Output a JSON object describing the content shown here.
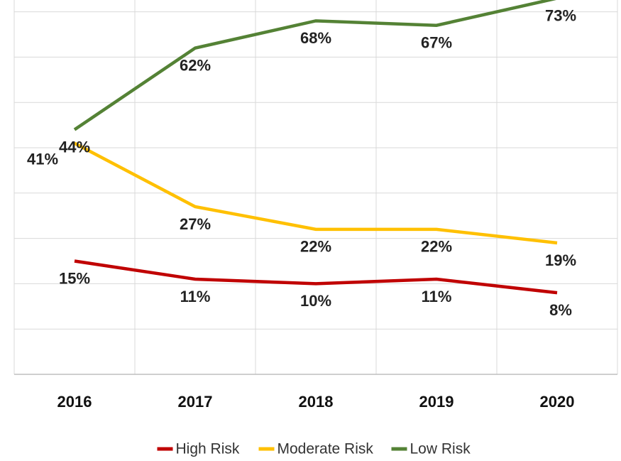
{
  "chart_data": {
    "type": "line",
    "categories": [
      "2016",
      "2017",
      "2018",
      "2019",
      "2020"
    ],
    "series": [
      {
        "name": "High Risk",
        "color": "#c00000",
        "values": [
          15,
          11,
          10,
          11,
          8
        ],
        "value_labels": [
          "15%",
          "11%",
          "10%",
          "11%",
          "8%"
        ]
      },
      {
        "name": "Moderate Risk",
        "color": "#ffc000",
        "values": [
          41,
          27,
          22,
          22,
          19
        ],
        "value_labels": [
          "41%",
          "27%",
          "22%",
          "22%",
          "19%"
        ]
      },
      {
        "name": "Low Risk",
        "color": "#548235",
        "values": [
          44,
          62,
          68,
          67,
          73
        ],
        "value_labels": [
          "44%",
          "62%",
          "68%",
          "67%",
          "73%"
        ]
      }
    ],
    "ylim": [
      -10,
      75
    ],
    "yticks": [
      -10,
      0,
      10,
      20,
      30,
      40,
      50,
      60,
      70
    ],
    "grid": true,
    "legend": "bottom"
  }
}
